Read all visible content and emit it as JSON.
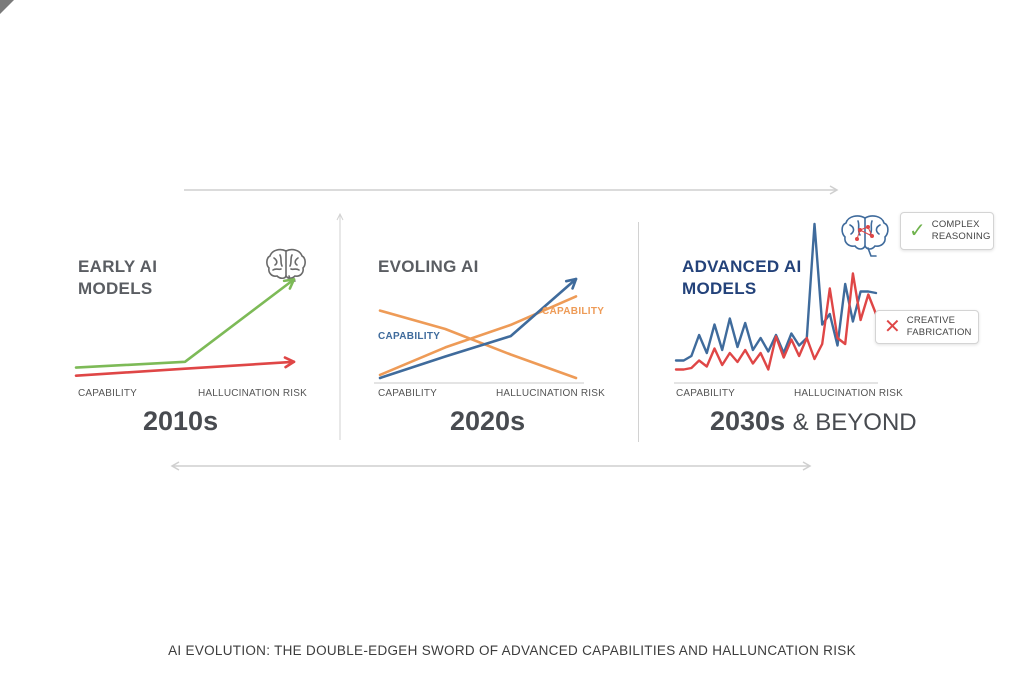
{
  "colors": {
    "green": "#7dba57",
    "red": "#df4646",
    "blue": "#3f6b9c",
    "orange": "#ee9b57",
    "navy": "#23427a",
    "gray_text": "#5a5d62"
  },
  "panels": [
    {
      "title_lines": [
        "EARLY AI",
        "MODELS"
      ],
      "era": "2010s",
      "axis_left": "CAPABILITY",
      "axis_right": "HALLUCINATION RISK",
      "icon": "brain-icon"
    },
    {
      "title_lines": [
        "EVOLING AI"
      ],
      "era": "2020s",
      "axis_left": "CAPABILITY",
      "axis_right": "HALLUCINATION RISK",
      "series_labels": [
        "CAPABILITY",
        "CAPABILITY"
      ]
    },
    {
      "title_lines": [
        "ADVANCED AI",
        "MODELS"
      ],
      "era": "2030s",
      "era_suffix": "& BEYOND",
      "axis_left": "CAPABILITY",
      "axis_right": "HALLUCINATION RISK",
      "icon": "brain-network-icon",
      "callouts": [
        {
          "icon": "check-icon",
          "lines": [
            "COMPLEX",
            "REASONING"
          ]
        },
        {
          "icon": "x-icon",
          "lines": [
            "CREATIVE",
            "FABRICATION"
          ]
        }
      ]
    }
  ],
  "caption": "AI EVOLUTION: THE DOUBLE-EDGEH SWORD OF ADVANCED CAPABILITIES AND HALLUNCATION RISK",
  "chart_data": [
    {
      "type": "line",
      "title": "EARLY AI MODELS",
      "xlabel": "CAPABILITY",
      "ylabel": "HALLUCINATION RISK",
      "x": [
        0,
        1,
        2
      ],
      "xlim": [
        0,
        2
      ],
      "ylim": [
        0,
        10
      ],
      "series": [
        {
          "name": "Capability",
          "color": "#7dba57",
          "values": [
            0.9,
            1.4,
            8.5
          ]
        },
        {
          "name": "Hallucination Risk",
          "color": "#df4646",
          "values": [
            0.2,
            0.8,
            1.4
          ]
        }
      ]
    },
    {
      "type": "line",
      "title": "EVOLING AI",
      "xlabel": "CAPABILITY",
      "ylabel": "HALLUCINATION RISK",
      "x": [
        0,
        1,
        2,
        3
      ],
      "xlim": [
        0,
        3
      ],
      "ylim": [
        0,
        10
      ],
      "series": [
        {
          "name": "Capability",
          "color": "#ee9b57",
          "values": [
            0.5,
            3.2,
            5.4,
            8.2
          ]
        },
        {
          "name": "Hallucination Risk",
          "color": "#ee9b57",
          "values": [
            6.8,
            5.0,
            2.5,
            0.2
          ]
        },
        {
          "name": "Capability",
          "color": "#3f6b9c",
          "values": [
            0.2,
            2.3,
            4.3,
            9.9
          ]
        }
      ]
    },
    {
      "type": "line",
      "title": "ADVANCED AI MODELS",
      "xlabel": "CAPABILITY",
      "ylabel": "HALLUCINATION RISK",
      "x": [
        0,
        1,
        2,
        3,
        4,
        5,
        6,
        7,
        8,
        9,
        10,
        11,
        12,
        13,
        14,
        15,
        16,
        17,
        18,
        19,
        20,
        21,
        22,
        23,
        24,
        25,
        26
      ],
      "xlim": [
        0,
        26
      ],
      "ylim": [
        0,
        10
      ],
      "series": [
        {
          "name": "Capability",
          "color": "#3f6b9c",
          "values": [
            0.9,
            0.9,
            1.2,
            2.6,
            1.4,
            3.3,
            1.6,
            3.7,
            1.8,
            3.4,
            1.6,
            2.4,
            1.5,
            2.6,
            1.4,
            2.7,
            1.9,
            2.4,
            10.0,
            3.3,
            4.0,
            1.9,
            6.0,
            3.5,
            5.5,
            5.5,
            5.4
          ]
        },
        {
          "name": "Hallucination Risk",
          "color": "#df4646",
          "values": [
            0.3,
            0.3,
            0.4,
            0.9,
            0.5,
            1.7,
            0.6,
            1.4,
            0.8,
            1.6,
            0.7,
            1.4,
            0.3,
            2.5,
            1.1,
            2.3,
            1.2,
            2.4,
            1.0,
            2.0,
            5.7,
            2.4,
            2.0,
            6.7,
            3.6,
            5.3,
            4.0
          ]
        }
      ]
    }
  ]
}
